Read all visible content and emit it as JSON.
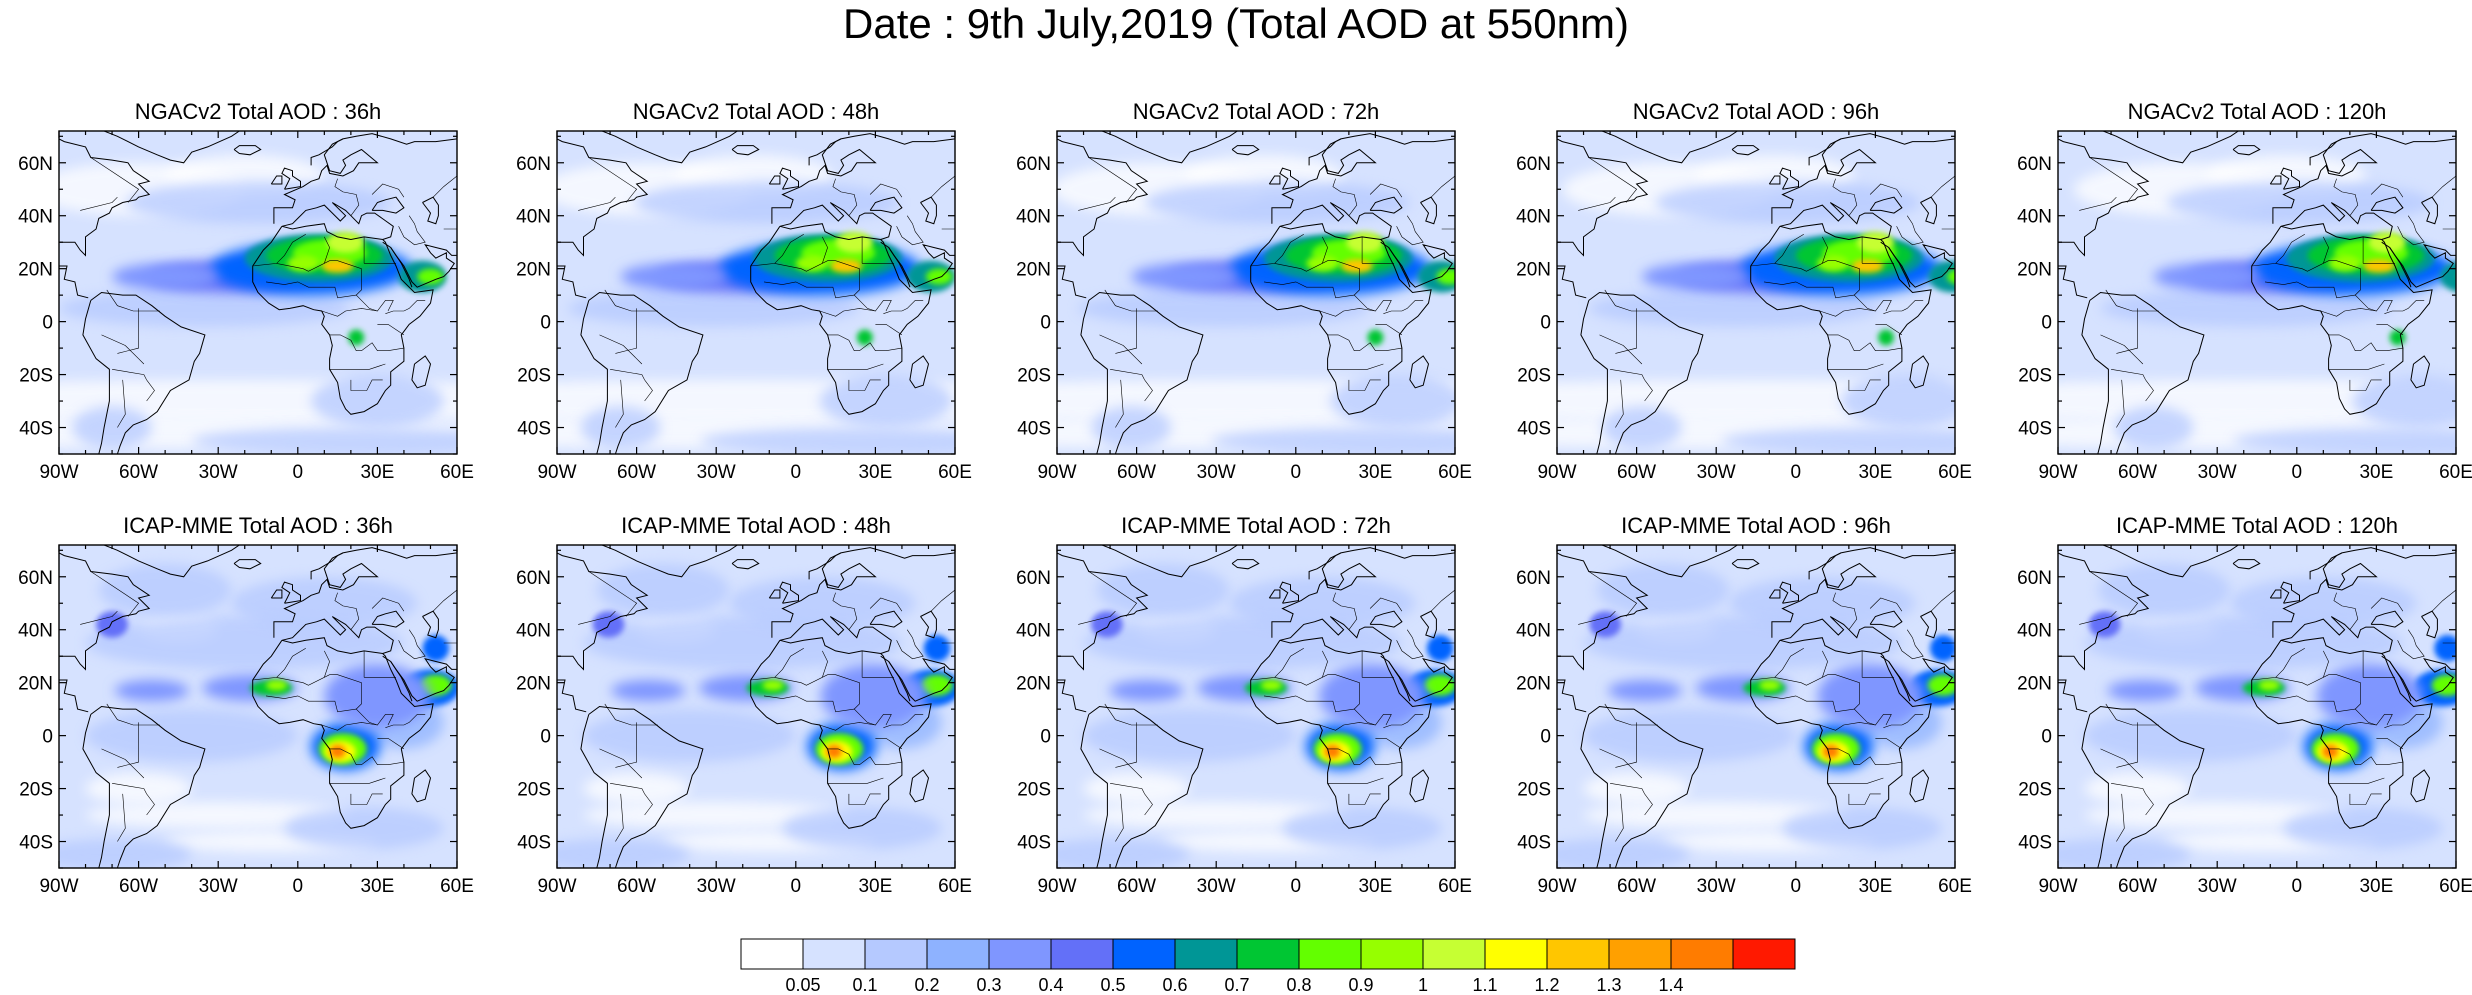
{
  "title": "Date : 9th July,2019 (Total AOD at 550nm)",
  "panels": [
    {
      "title": "NGACv2 Total AOD : 36h",
      "model": "ngac"
    },
    {
      "title": "NGACv2 Total AOD : 48h",
      "model": "ngac"
    },
    {
      "title": "NGACv2 Total AOD : 72h",
      "model": "ngac"
    },
    {
      "title": "NGACv2 Total AOD : 96h",
      "model": "ngac"
    },
    {
      "title": "NGACv2 Total AOD : 120h",
      "model": "ngac"
    },
    {
      "title": "ICAP-MME Total AOD : 36h",
      "model": "icap"
    },
    {
      "title": "ICAP-MME Total AOD : 48h",
      "model": "icap"
    },
    {
      "title": "ICAP-MME Total AOD : 72h",
      "model": "icap"
    },
    {
      "title": "ICAP-MME Total AOD : 96h",
      "model": "icap"
    },
    {
      "title": "ICAP-MME Total AOD : 120h",
      "model": "icap"
    }
  ],
  "lon_ticks": [
    "90W",
    "60W",
    "30W",
    "0",
    "30E",
    "60E"
  ],
  "lat_ticks": [
    "60N",
    "40N",
    "20N",
    "0",
    "20S",
    "40S"
  ],
  "colorbar": {
    "colors": [
      "#ffffff",
      "#d6e2ff",
      "#b5c9ff",
      "#8eb2ff",
      "#7f96ff",
      "#6370f8",
      "#0063ff",
      "#009696",
      "#00c633",
      "#63ff00",
      "#96ff00",
      "#c6ff33",
      "#ffff00",
      "#ffc600",
      "#ffa000",
      "#ff7c00",
      "#ff1900"
    ],
    "labels": [
      "0.05",
      "0.1",
      "0.2",
      "0.3",
      "0.4",
      "0.5",
      "0.6",
      "0.7",
      "0.8",
      "0.9",
      "1",
      "1.1",
      "1.2",
      "1.3",
      "1.4"
    ]
  }
}
